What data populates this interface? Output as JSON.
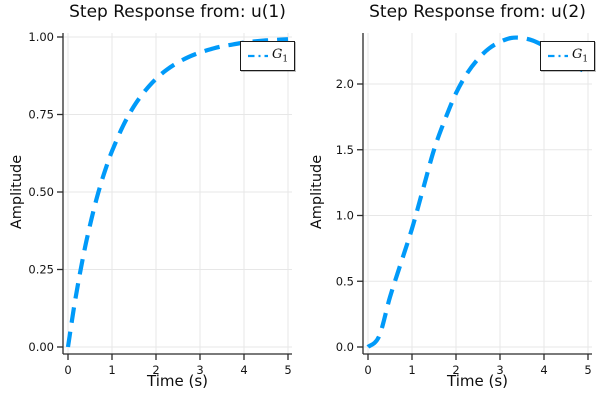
{
  "figure": {
    "background": "#ffffff",
    "accent_color": "#009af9"
  },
  "chart_data": [
    {
      "type": "line",
      "title": "Step Response from: u(1)",
      "xlabel": "Time (s)",
      "ylabel": "Amplitude",
      "xlim": [
        0,
        5
      ],
      "ylim": [
        0,
        1.01
      ],
      "grid": true,
      "xticks": [
        0,
        1,
        2,
        3,
        4,
        5
      ],
      "xtick_labels": [
        "0",
        "1",
        "2",
        "3",
        "4",
        "5"
      ],
      "ytick_values": [
        0,
        0.25,
        0.5,
        0.75,
        1.0
      ],
      "ytick_labels": [
        "0.00",
        "0.25",
        "0.50",
        "0.75",
        "1.00"
      ],
      "legend": {
        "position": "top-right",
        "base": "G",
        "sub": "1",
        "style": "dashed",
        "color": "#009af9"
      },
      "series": [
        {
          "name": "G_1",
          "style": "dashed",
          "color": "#009af9",
          "x": [
            0,
            0.125,
            0.25,
            0.375,
            0.5,
            0.625,
            0.75,
            0.875,
            1,
            1.25,
            1.5,
            1.75,
            2,
            2.25,
            2.5,
            2.75,
            3,
            3.25,
            3.5,
            3.75,
            4,
            4.25,
            4.5,
            4.75,
            5
          ],
          "y": [
            0,
            0.118,
            0.221,
            0.313,
            0.393,
            0.465,
            0.528,
            0.583,
            0.632,
            0.713,
            0.777,
            0.826,
            0.865,
            0.895,
            0.918,
            0.936,
            0.95,
            0.961,
            0.97,
            0.976,
            0.982,
            0.986,
            0.989,
            0.991,
            0.993
          ]
        }
      ]
    },
    {
      "type": "line",
      "title": "Step Response from: u(2)",
      "xlabel": "Time (s)",
      "ylabel": "Amplitude",
      "xlim": [
        0,
        5
      ],
      "ylim": [
        0,
        2.39
      ],
      "grid": true,
      "xticks": [
        0,
        1,
        2,
        3,
        4,
        5
      ],
      "xtick_labels": [
        "0",
        "1",
        "2",
        "3",
        "4",
        "5"
      ],
      "ytick_values": [
        0,
        0.5,
        1.0,
        1.5,
        2.0
      ],
      "ytick_labels": [
        "0.0",
        "0.5",
        "1.0",
        "1.5",
        "2.0"
      ],
      "legend": {
        "position": "top-right",
        "base": "G",
        "sub": "1",
        "style": "dashed",
        "color": "#009af9"
      },
      "series": [
        {
          "name": "G_1",
          "style": "dashed",
          "color": "#009af9",
          "x": [
            0,
            0.25,
            0.5,
            0.75,
            1,
            1.25,
            1.5,
            1.75,
            2,
            2.25,
            2.5,
            2.75,
            3,
            3.25,
            3.5,
            3.75,
            4,
            4.25,
            4.5,
            4.75,
            5
          ],
          "y": [
            0,
            0.08,
            0.38,
            0.64,
            0.9,
            1.2,
            1.5,
            1.73,
            1.93,
            2.08,
            2.19,
            2.27,
            2.32,
            2.35,
            2.35,
            2.33,
            2.29,
            2.24,
            2.18,
            2.13,
            2.08
          ]
        }
      ]
    }
  ]
}
